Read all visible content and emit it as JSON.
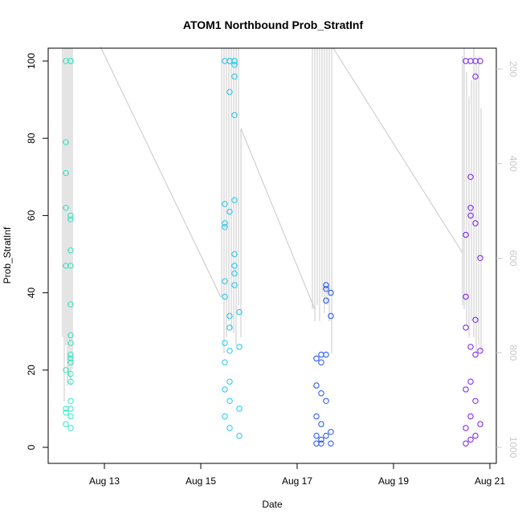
{
  "chart_data": {
    "type": "scatter",
    "title": "ATOM1 Northbound Prob_StratInf",
    "xlabel": "Date",
    "ylabel": "Prob_StratInf",
    "ylim": [
      0,
      100
    ],
    "x_ticks": [
      "Aug 13",
      "Aug 15",
      "Aug 17",
      "Aug 19",
      "Aug 21"
    ],
    "y_ticks": [
      "0",
      "20",
      "40",
      "60",
      "80",
      "100"
    ],
    "y2_ticks": [
      "200",
      "400",
      "600",
      "800",
      "1000"
    ],
    "y2lim": [
      1000,
      200
    ],
    "grid": false,
    "legend": "none",
    "overlay_line_color": "#c8c8c8",
    "series": [
      {
        "color": "#2ee8c8",
        "x": [
          "Aug 12.2",
          "Aug 12.2",
          "Aug 12.2",
          "Aug 12.2",
          "Aug 12.2",
          "Aug 12.2",
          "Aug 12.2",
          "Aug 12.2",
          "Aug 12.2",
          "Aug 12.3",
          "Aug 12.3",
          "Aug 12.3",
          "Aug 12.3",
          "Aug 12.3",
          "Aug 12.3",
          "Aug 12.3",
          "Aug 12.3",
          "Aug 12.3",
          "Aug 12.3",
          "Aug 12.3",
          "Aug 12.3",
          "Aug 12.3",
          "Aug 12.3",
          "Aug 12.3",
          "Aug 12.3",
          "Aug 12.3",
          "Aug 12.3",
          "Aug 12.3"
        ],
        "values": [
          100,
          79,
          71,
          62,
          47,
          20,
          10,
          9,
          6,
          100,
          100,
          100,
          60,
          59,
          51,
          47,
          37,
          29,
          27,
          24,
          23,
          22,
          19,
          17,
          12,
          10,
          8,
          5
        ]
      },
      {
        "color": "#1ec8f0",
        "x": [
          "Aug 15.5",
          "Aug 15.5",
          "Aug 15.5",
          "Aug 15.5",
          "Aug 15.5",
          "Aug 15.5",
          "Aug 15.5",
          "Aug 15.5",
          "Aug 15.5",
          "Aug 15.5",
          "Aug 15.6",
          "Aug 15.6",
          "Aug 15.6",
          "Aug 15.6",
          "Aug 15.6",
          "Aug 15.6",
          "Aug 15.6",
          "Aug 15.6",
          "Aug 15.6",
          "Aug 15.6",
          "Aug 15.7",
          "Aug 15.7",
          "Aug 15.7",
          "Aug 15.7",
          "Aug 15.7",
          "Aug 15.7",
          "Aug 15.7",
          "Aug 15.7",
          "Aug 15.7",
          "Aug 15.7",
          "Aug 15.8",
          "Aug 15.8",
          "Aug 15.8",
          "Aug 15.8"
        ],
        "values": [
          100,
          63,
          58,
          57,
          43,
          39,
          27,
          22,
          15,
          8,
          100,
          100,
          92,
          61,
          34,
          31,
          25,
          17,
          12,
          5,
          100,
          100,
          99,
          96,
          86,
          64,
          50,
          47,
          45,
          42,
          35,
          26,
          10,
          3
        ]
      },
      {
        "color": "#1e50f0",
        "x": [
          "Aug 17.4",
          "Aug 17.4",
          "Aug 17.4",
          "Aug 17.4",
          "Aug 17.4",
          "Aug 17.5",
          "Aug 17.5",
          "Aug 17.5",
          "Aug 17.5",
          "Aug 17.5",
          "Aug 17.5",
          "Aug 17.6",
          "Aug 17.6",
          "Aug 17.6",
          "Aug 17.6",
          "Aug 17.6",
          "Aug 17.6",
          "Aug 17.7",
          "Aug 17.7",
          "Aug 17.7",
          "Aug 17.7"
        ],
        "values": [
          23,
          16,
          8,
          3,
          1,
          24,
          22,
          14,
          6,
          2,
          1,
          42,
          41,
          38,
          24,
          12,
          3,
          40,
          34,
          4,
          1
        ]
      },
      {
        "color": "#7a1ef0",
        "x": [
          "Aug 20.5",
          "Aug 20.5",
          "Aug 20.5",
          "Aug 20.5",
          "Aug 20.5",
          "Aug 20.5",
          "Aug 20.5",
          "Aug 20.6",
          "Aug 20.6",
          "Aug 20.6",
          "Aug 20.6",
          "Aug 20.6",
          "Aug 20.6",
          "Aug 20.6",
          "Aug 20.6",
          "Aug 20.7",
          "Aug 20.7",
          "Aug 20.7",
          "Aug 20.7",
          "Aug 20.7",
          "Aug 20.7",
          "Aug 20.7",
          "Aug 20.8",
          "Aug 20.8",
          "Aug 20.8",
          "Aug 20.8"
        ],
        "values": [
          100,
          55,
          39,
          31,
          15,
          5,
          1,
          100,
          70,
          62,
          60,
          26,
          17,
          8,
          2,
          100,
          96,
          58,
          33,
          24,
          12,
          3,
          100,
          49,
          25,
          6
        ]
      }
    ]
  }
}
